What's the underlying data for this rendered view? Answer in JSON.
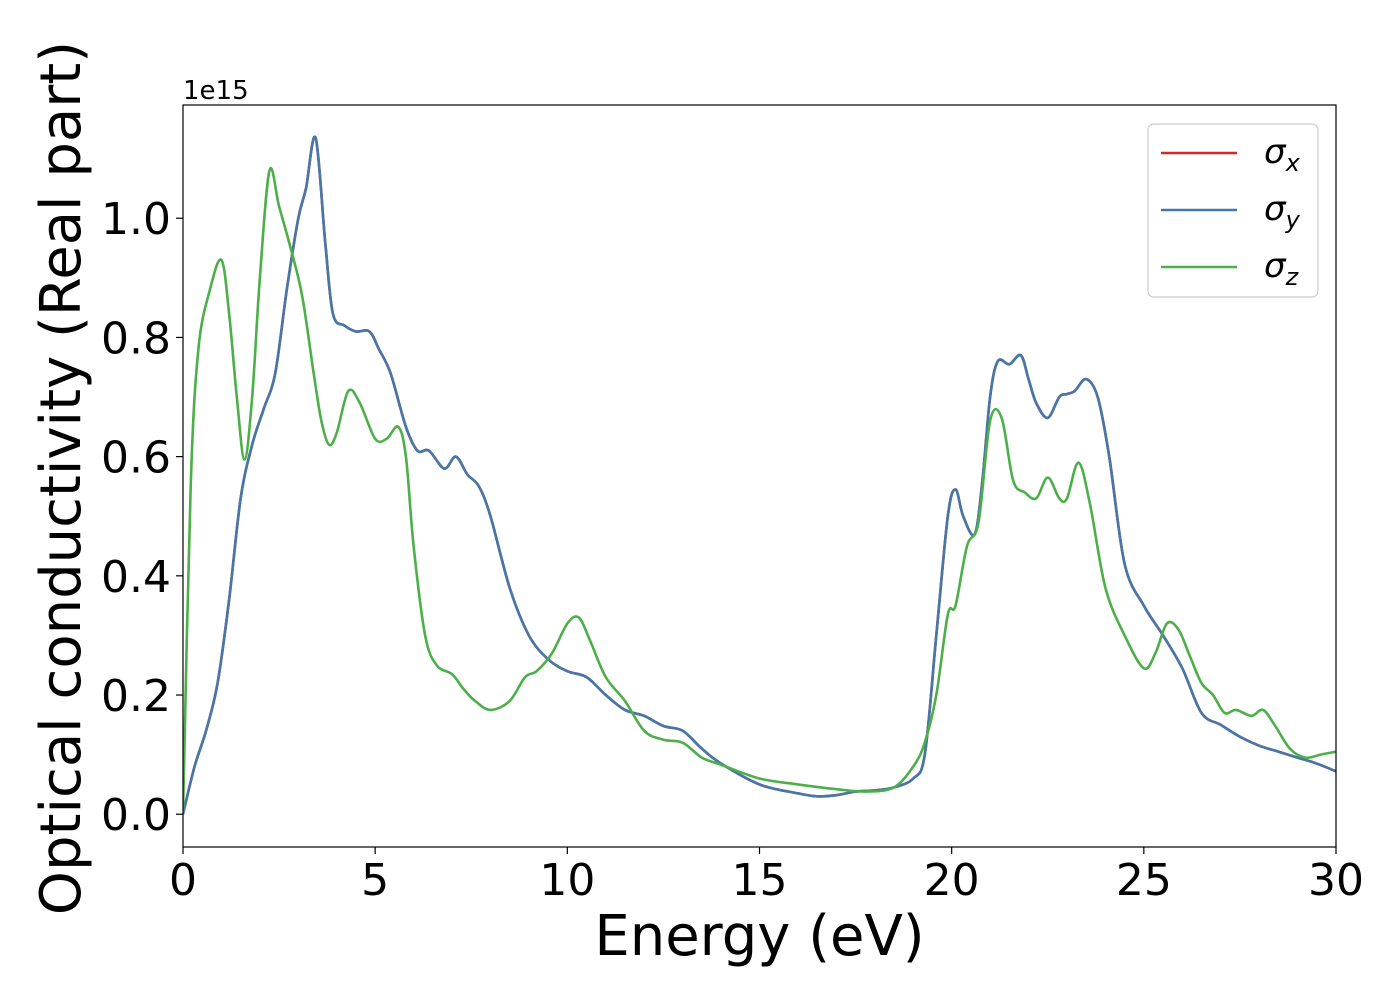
{
  "chart_data": {
    "type": "line",
    "xlabel": "Energy (eV)",
    "ylabel": "Optical conductivity (Real part)",
    "y_offset_text": "1e15",
    "xlim": [
      0,
      30
    ],
    "ylim": [
      -0.055,
      1.19
    ],
    "x_ticks": [
      0,
      5,
      10,
      15,
      20,
      25,
      30
    ],
    "y_ticks": [
      0.0,
      0.2,
      0.4,
      0.6,
      0.8,
      1.0
    ],
    "x_tick_labels": [
      "0",
      "5",
      "10",
      "15",
      "20",
      "25",
      "30"
    ],
    "y_tick_labels": [
      "0.0",
      "0.2",
      "0.4",
      "0.6",
      "0.8",
      "1.0"
    ],
    "grid": false,
    "legend_position": "top-right",
    "series": [
      {
        "name": "σx",
        "legend_symbol": "σ",
        "legend_sub": "x",
        "color": "#d62728",
        "x": [
          0,
          0.3,
          0.6,
          0.9,
          1.2,
          1.5,
          1.8,
          2.1,
          2.4,
          2.7,
          3.0,
          3.2,
          3.45,
          3.7,
          3.9,
          4.2,
          4.5,
          4.85,
          5.1,
          5.4,
          5.8,
          6.1,
          6.4,
          6.8,
          7.1,
          7.4,
          7.7,
          8.0,
          8.5,
          9.0,
          9.5,
          10.0,
          10.5,
          11.0,
          11.5,
          12.0,
          12.5,
          13.0,
          13.5,
          14.0,
          15.0,
          16.0,
          16.5,
          17.0,
          17.5,
          18.0,
          18.5,
          19.0,
          19.3,
          19.6,
          19.9,
          20.1,
          20.3,
          20.6,
          20.8,
          21.0,
          21.2,
          21.5,
          21.8,
          22.0,
          22.2,
          22.5,
          22.8,
          23.0,
          23.2,
          23.5,
          23.8,
          24.1,
          24.5,
          25.0,
          25.5,
          26.0,
          26.5,
          27.0,
          27.5,
          28.0,
          28.5,
          29.0,
          29.5,
          30.0
        ],
        "values": [
          0.0,
          0.08,
          0.14,
          0.22,
          0.36,
          0.53,
          0.62,
          0.68,
          0.74,
          0.88,
          1.0,
          1.05,
          1.135,
          0.96,
          0.84,
          0.82,
          0.81,
          0.81,
          0.78,
          0.74,
          0.65,
          0.61,
          0.61,
          0.58,
          0.6,
          0.57,
          0.55,
          0.5,
          0.38,
          0.3,
          0.26,
          0.24,
          0.23,
          0.2,
          0.175,
          0.165,
          0.148,
          0.14,
          0.11,
          0.085,
          0.05,
          0.035,
          0.03,
          0.032,
          0.038,
          0.04,
          0.045,
          0.06,
          0.1,
          0.3,
          0.5,
          0.545,
          0.5,
          0.47,
          0.56,
          0.7,
          0.76,
          0.755,
          0.77,
          0.73,
          0.69,
          0.665,
          0.7,
          0.705,
          0.71,
          0.73,
          0.7,
          0.6,
          0.42,
          0.35,
          0.3,
          0.245,
          0.17,
          0.15,
          0.13,
          0.115,
          0.105,
          0.095,
          0.085,
          0.072
        ]
      },
      {
        "name": "σy",
        "legend_symbol": "σ",
        "legend_sub": "y",
        "color": "#4477aa",
        "x": [
          0,
          0.3,
          0.6,
          0.9,
          1.2,
          1.5,
          1.8,
          2.1,
          2.4,
          2.7,
          3.0,
          3.2,
          3.45,
          3.7,
          3.9,
          4.2,
          4.5,
          4.85,
          5.1,
          5.4,
          5.8,
          6.1,
          6.4,
          6.8,
          7.1,
          7.4,
          7.7,
          8.0,
          8.5,
          9.0,
          9.5,
          10.0,
          10.5,
          11.0,
          11.5,
          12.0,
          12.5,
          13.0,
          13.5,
          14.0,
          15.0,
          16.0,
          16.5,
          17.0,
          17.5,
          18.0,
          18.5,
          19.0,
          19.3,
          19.6,
          19.9,
          20.1,
          20.3,
          20.6,
          20.8,
          21.0,
          21.2,
          21.5,
          21.8,
          22.0,
          22.2,
          22.5,
          22.8,
          23.0,
          23.2,
          23.5,
          23.8,
          24.1,
          24.5,
          25.0,
          25.5,
          26.0,
          26.5,
          27.0,
          27.5,
          28.0,
          28.5,
          29.0,
          29.5,
          30.0
        ],
        "values": [
          0.0,
          0.08,
          0.14,
          0.22,
          0.36,
          0.53,
          0.62,
          0.68,
          0.74,
          0.88,
          1.0,
          1.05,
          1.135,
          0.96,
          0.84,
          0.82,
          0.81,
          0.81,
          0.78,
          0.74,
          0.65,
          0.61,
          0.61,
          0.58,
          0.6,
          0.57,
          0.55,
          0.5,
          0.38,
          0.3,
          0.26,
          0.24,
          0.23,
          0.2,
          0.175,
          0.165,
          0.148,
          0.14,
          0.11,
          0.085,
          0.05,
          0.035,
          0.03,
          0.032,
          0.038,
          0.04,
          0.045,
          0.06,
          0.1,
          0.3,
          0.5,
          0.545,
          0.5,
          0.47,
          0.56,
          0.7,
          0.76,
          0.755,
          0.77,
          0.73,
          0.69,
          0.665,
          0.7,
          0.705,
          0.71,
          0.73,
          0.7,
          0.6,
          0.42,
          0.35,
          0.3,
          0.245,
          0.17,
          0.15,
          0.13,
          0.115,
          0.105,
          0.095,
          0.085,
          0.072
        ]
      },
      {
        "name": "σz",
        "legend_symbol": "σ",
        "legend_sub": "z",
        "color": "#4daf4a",
        "x": [
          0,
          0.2,
          0.4,
          0.7,
          1.0,
          1.2,
          1.4,
          1.6,
          1.8,
          2.0,
          2.25,
          2.5,
          2.8,
          3.1,
          3.4,
          3.6,
          3.8,
          4.0,
          4.3,
          4.6,
          5.0,
          5.3,
          5.6,
          5.8,
          6.0,
          6.3,
          6.6,
          7.0,
          7.3,
          7.6,
          8.0,
          8.5,
          8.9,
          9.2,
          9.6,
          10.0,
          10.3,
          10.6,
          11.0,
          11.5,
          12.0,
          12.5,
          13.0,
          13.5,
          14.0,
          15.0,
          16.0,
          17.0,
          17.8,
          18.5,
          19.0,
          19.3,
          19.6,
          19.9,
          20.1,
          20.4,
          20.7,
          21.0,
          21.3,
          21.6,
          21.9,
          22.2,
          22.5,
          22.8,
          23.0,
          23.3,
          23.6,
          24.0,
          24.5,
          25.0,
          25.3,
          25.6,
          25.9,
          26.2,
          26.5,
          26.8,
          27.1,
          27.4,
          27.8,
          28.1,
          28.4,
          28.8,
          29.2,
          29.6,
          30.0
        ],
        "values": [
          0.0,
          0.55,
          0.78,
          0.88,
          0.93,
          0.84,
          0.7,
          0.595,
          0.7,
          0.9,
          1.08,
          1.02,
          0.95,
          0.87,
          0.74,
          0.66,
          0.62,
          0.64,
          0.71,
          0.69,
          0.63,
          0.63,
          0.65,
          0.6,
          0.45,
          0.3,
          0.25,
          0.235,
          0.21,
          0.19,
          0.175,
          0.19,
          0.23,
          0.24,
          0.27,
          0.32,
          0.33,
          0.29,
          0.23,
          0.19,
          0.14,
          0.125,
          0.12,
          0.095,
          0.083,
          0.06,
          0.05,
          0.042,
          0.038,
          0.045,
          0.08,
          0.12,
          0.2,
          0.335,
          0.35,
          0.45,
          0.49,
          0.66,
          0.665,
          0.56,
          0.54,
          0.53,
          0.565,
          0.53,
          0.53,
          0.59,
          0.52,
          0.38,
          0.3,
          0.245,
          0.27,
          0.32,
          0.31,
          0.265,
          0.22,
          0.2,
          0.17,
          0.175,
          0.165,
          0.175,
          0.15,
          0.11,
          0.095,
          0.1,
          0.105
        ]
      }
    ]
  }
}
